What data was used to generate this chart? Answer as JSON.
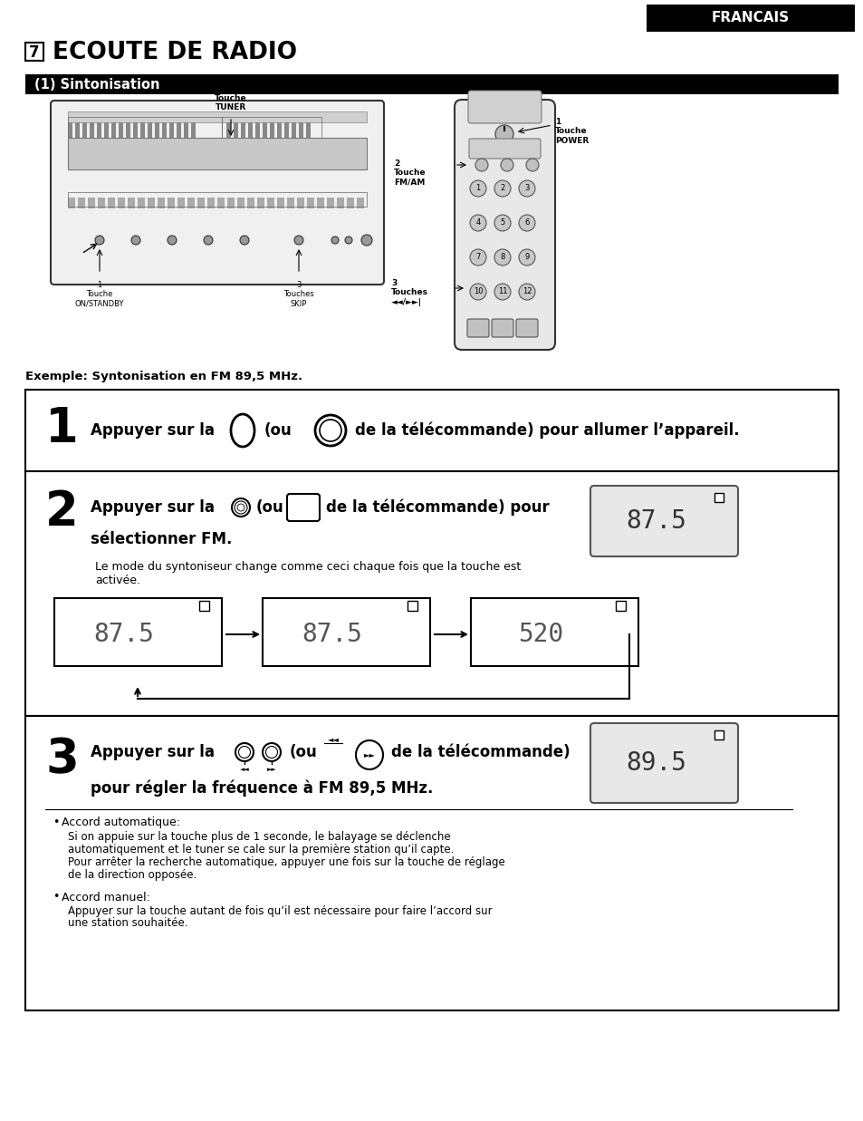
{
  "page_bg": "#ffffff",
  "header_bg": "#000000",
  "header_text": "FRANCAIS",
  "header_text_color": "#ffffff",
  "title_number": "7",
  "title_text": "ECOUTE DE RADIO",
  "subtitle_bg": "#000000",
  "subtitle_text": "(1) Sintonisation",
  "subtitle_text_color": "#ffffff",
  "example_text": "Exemple: Syntonisation en FM 89,5 MHz.",
  "step1_num": "1",
  "step1_text1": "Appuyer sur la",
  "step1_text2": "(ou",
  "step1_text3": "de la télécommande) pour allumer l’appareil.",
  "step2_num": "2",
  "step2_text1": "Appuyer sur la",
  "step2_text2": "(ou",
  "step2_text3": "de la télécommande) pour",
  "step2_text4": "sélectionner FM.",
  "step2_note1": "Le mode du syntoniseur change comme ceci chaque fois que la touche est",
  "step2_note2": "activée.",
  "step2_display": "87.5",
  "display1": "87.5",
  "display2": "87.5",
  "display3": "520",
  "step3_num": "3",
  "step3_text1": "Appuyer sur la",
  "step3_text2": "(ou",
  "step3_text3": "de la télécommande)",
  "step3_text4": "pour régler la fréquence à FM 89,5 MHz.",
  "step3_display": "89.5",
  "bullet1_title": "Accord automatique:",
  "bullet1_l1": "Si on appuie sur la touche plus de 1 seconde, le balayage se déclenche",
  "bullet1_l2": "automatiquement et le tuner se cale sur la première station qu’il capte.",
  "bullet1_l3": "Pour arrêter la recherche automatique, appuyer une fois sur la touche de réglage",
  "bullet1_l4": "de la direction opposée.",
  "bullet2_title": "Accord manuel:",
  "bullet2_l1": "Appuyer sur la touche autant de fois qu’il est nécessaire pour faire l’accord sur",
  "bullet2_l2": "une station souhaitée."
}
